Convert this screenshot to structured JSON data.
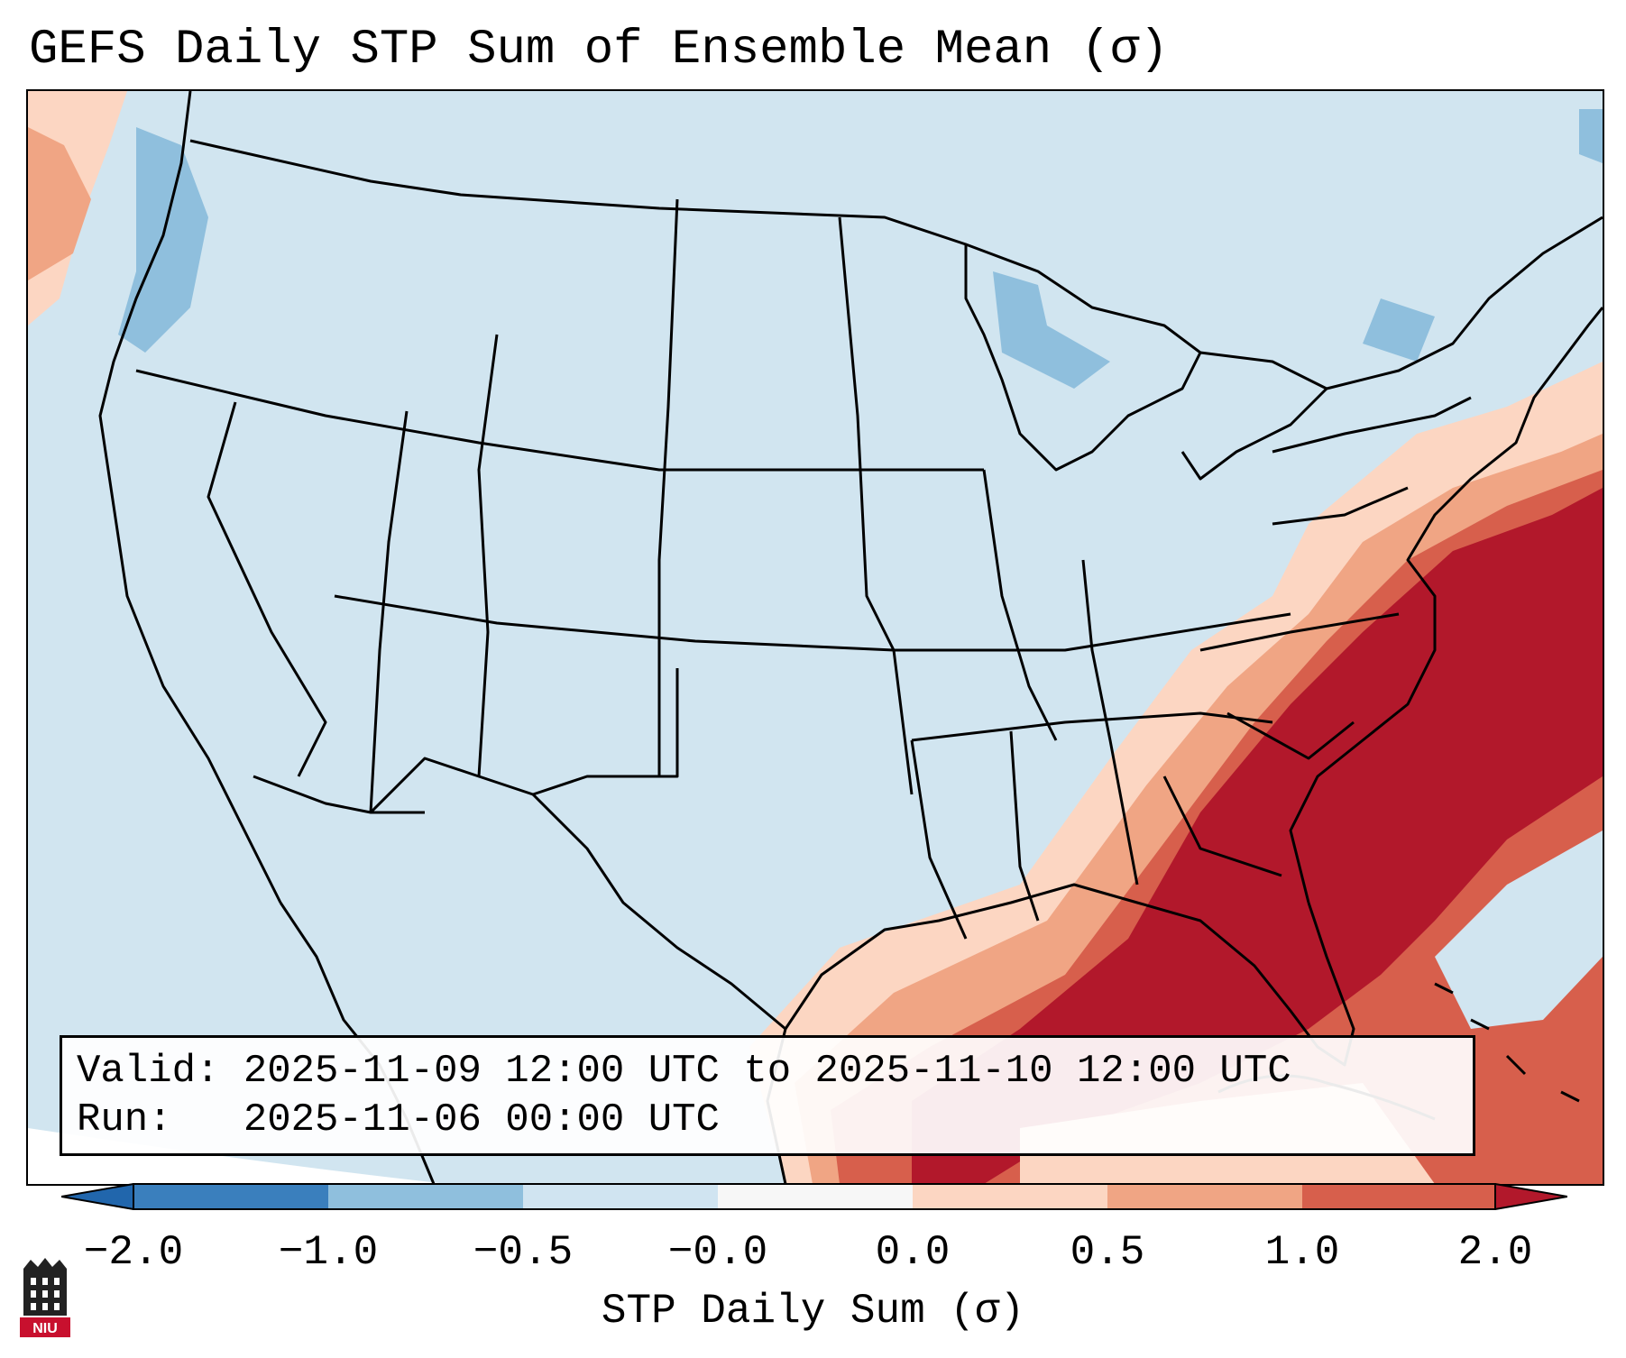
{
  "title": "GEFS Daily STP Sum of Ensemble Mean (σ)",
  "info": {
    "valid_label": "Valid:",
    "valid_value": "2025-11-09 12:00 UTC to 2025-11-10 12:00 UTC",
    "run_label": "Run:",
    "run_value": "2025-11-06 00:00 UTC"
  },
  "colorbar": {
    "label": "STP Daily Sum (σ)",
    "ticks": [
      "−2.0",
      "−1.0",
      "−0.5",
      "−0.0",
      "0.0",
      "0.5",
      "1.0",
      "2.0"
    ],
    "colors": [
      "#3a7fbd",
      "#8fbfdd",
      "#d0e4f1",
      "#f7f7f7",
      "#fcd6c2",
      "#f0a584",
      "#d75f4c",
      "#b2182b"
    ],
    "extend": "both"
  },
  "map": {
    "background_color": "#d1e5f0",
    "high_anomaly_color": "#b2182b"
  },
  "logo": {
    "text": "NIU"
  }
}
